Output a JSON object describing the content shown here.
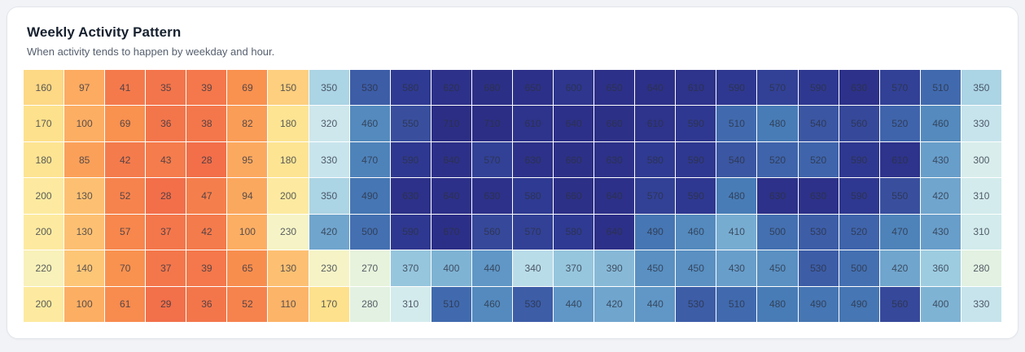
{
  "chart_data": {
    "type": "heatmap",
    "title": "Weekly Activity Pattern",
    "subtitle": "When activity tends to happen by weekday and hour.",
    "rows": 7,
    "columns": 24,
    "value_range": [
      28,
      710
    ],
    "values": [
      [
        160,
        97,
        41,
        35,
        39,
        69,
        150,
        350,
        530,
        580,
        620,
        680,
        650,
        600,
        650,
        640,
        610,
        590,
        570,
        590,
        630,
        570,
        510,
        350
      ],
      [
        170,
        100,
        69,
        36,
        38,
        82,
        180,
        320,
        460,
        550,
        710,
        710,
        610,
        640,
        660,
        610,
        590,
        510,
        480,
        540,
        560,
        520,
        460,
        330
      ],
      [
        180,
        85,
        42,
        43,
        28,
        95,
        180,
        330,
        470,
        590,
        640,
        570,
        630,
        660,
        630,
        580,
        590,
        540,
        520,
        520,
        590,
        610,
        430,
        300
      ],
      [
        200,
        130,
        52,
        28,
        47,
        94,
        200,
        350,
        490,
        630,
        640,
        630,
        580,
        660,
        640,
        570,
        590,
        480,
        630,
        630,
        590,
        550,
        420,
        310
      ],
      [
        200,
        130,
        57,
        37,
        42,
        100,
        230,
        420,
        500,
        590,
        670,
        560,
        570,
        580,
        640,
        490,
        460,
        410,
        500,
        530,
        520,
        470,
        430,
        310
      ],
      [
        220,
        140,
        70,
        37,
        39,
        65,
        130,
        230,
        270,
        370,
        400,
        440,
        340,
        370,
        390,
        450,
        450,
        430,
        450,
        530,
        500,
        420,
        360,
        280
      ],
      [
        200,
        100,
        61,
        29,
        36,
        52,
        110,
        170,
        280,
        310,
        510,
        460,
        530,
        440,
        420,
        440,
        530,
        510,
        480,
        490,
        490,
        560,
        400,
        330
      ]
    ],
    "colormap": {
      "name": "red-yellow-blue",
      "stops": [
        [
          28,
          "#f26f4a"
        ],
        [
          70,
          "#f9924f"
        ],
        [
          100,
          "#fcae63"
        ],
        [
          140,
          "#fdc677"
        ],
        [
          170,
          "#fde18c"
        ],
        [
          200,
          "#fdeaa0"
        ],
        [
          230,
          "#f6f4c6"
        ],
        [
          270,
          "#e7f3dc"
        ],
        [
          300,
          "#d9eeec"
        ],
        [
          330,
          "#c7e4ed"
        ],
        [
          360,
          "#9dcce0"
        ],
        [
          400,
          "#7fb3d4"
        ],
        [
          440,
          "#6097c6"
        ],
        [
          480,
          "#487cb6"
        ],
        [
          520,
          "#3f64ab"
        ],
        [
          550,
          "#394f9e"
        ],
        [
          580,
          "#2f3a92"
        ],
        [
          620,
          "#2d3189"
        ],
        [
          710,
          "#2c2e85"
        ]
      ]
    },
    "grid": false,
    "legend": "none"
  }
}
